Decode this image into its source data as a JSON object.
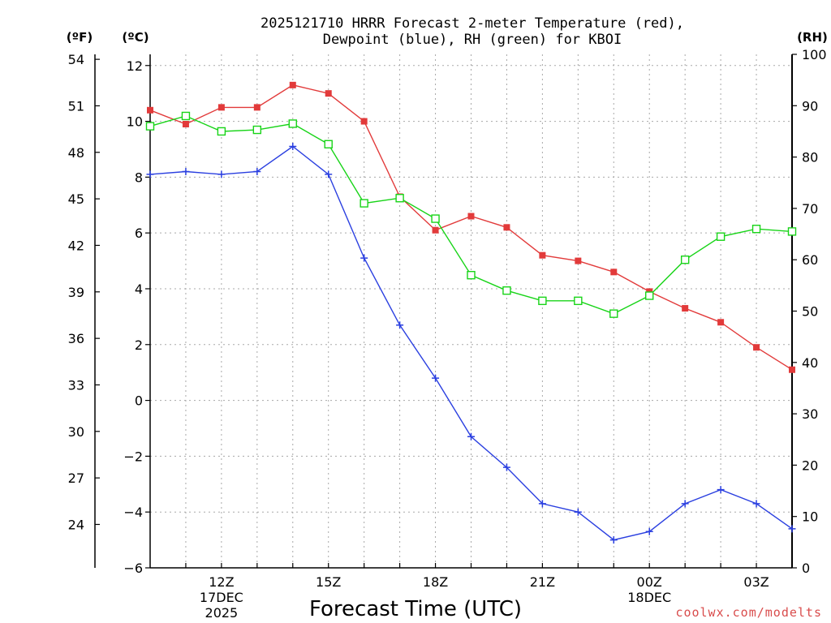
{
  "chart_data": {
    "type": "line",
    "title_line1": "2025121710 HRRR Forecast 2-meter Temperature (red),",
    "title_line2": "Dewpoint (blue), RH (green) for KBOI",
    "xlabel": "Forecast Time (UTC)",
    "credit": "coolwx.com/modelts",
    "units": {
      "fahrenheit": "(ºF)",
      "celsius": "(ºC)",
      "rh": "(RH)"
    },
    "x_hours": [
      10,
      11,
      12,
      13,
      14,
      15,
      16,
      17,
      18,
      19,
      20,
      21,
      22,
      23,
      24,
      25,
      26,
      27,
      28
    ],
    "xlim": [
      10,
      28
    ],
    "x_ticks": [
      {
        "hour": 12,
        "lines": [
          "12Z",
          "17DEC",
          "2025"
        ]
      },
      {
        "hour": 15,
        "lines": [
          "15Z"
        ]
      },
      {
        "hour": 18,
        "lines": [
          "18Z"
        ]
      },
      {
        "hour": 21,
        "lines": [
          "21Z"
        ]
      },
      {
        "hour": 24,
        "lines": [
          "00Z",
          "18DEC"
        ]
      },
      {
        "hour": 27,
        "lines": [
          "03Z"
        ]
      }
    ],
    "celsius_ylim": [
      -6,
      12.4
    ],
    "celsius_ticks": [
      12,
      10,
      8,
      6,
      4,
      2,
      0,
      -2,
      -4,
      -6
    ],
    "celsius_tick_labels": [
      "12",
      "10",
      "8",
      "6",
      "4",
      "2",
      "0",
      "−2",
      "−4",
      "−6"
    ],
    "fahrenheit_ticks": [
      54,
      51,
      48,
      45,
      42,
      39,
      36,
      33,
      30,
      27,
      24
    ],
    "rh_ylim": [
      0,
      100
    ],
    "rh_ticks": [
      100,
      90,
      80,
      70,
      60,
      50,
      40,
      30,
      20,
      10,
      0
    ],
    "series": [
      {
        "name": "Temperature",
        "axis": "celsius",
        "color": "#e23a3a",
        "marker": "filled-square",
        "values": [
          10.4,
          9.9,
          10.5,
          10.5,
          11.3,
          11.0,
          10.0,
          7.3,
          6.1,
          6.6,
          6.2,
          5.2,
          5.0,
          4.6,
          3.9,
          3.3,
          2.8,
          1.9,
          1.1
        ]
      },
      {
        "name": "Dewpoint",
        "axis": "celsius",
        "color": "#2a3fe0",
        "marker": "plus",
        "values": [
          8.1,
          8.2,
          8.1,
          8.2,
          9.1,
          8.1,
          5.1,
          2.7,
          0.8,
          -1.3,
          -2.4,
          -3.7,
          -4.0,
          -5.0,
          -4.7,
          -3.7,
          -3.2,
          -3.7,
          -4.6
        ]
      },
      {
        "name": "RH",
        "axis": "rh",
        "color": "#18d418",
        "marker": "open-square",
        "values": [
          86,
          88,
          85,
          85.3,
          86.5,
          82.5,
          71,
          72,
          68,
          57,
          54,
          52,
          52,
          49.5,
          53,
          60,
          64.5,
          66,
          65.5
        ]
      }
    ]
  }
}
